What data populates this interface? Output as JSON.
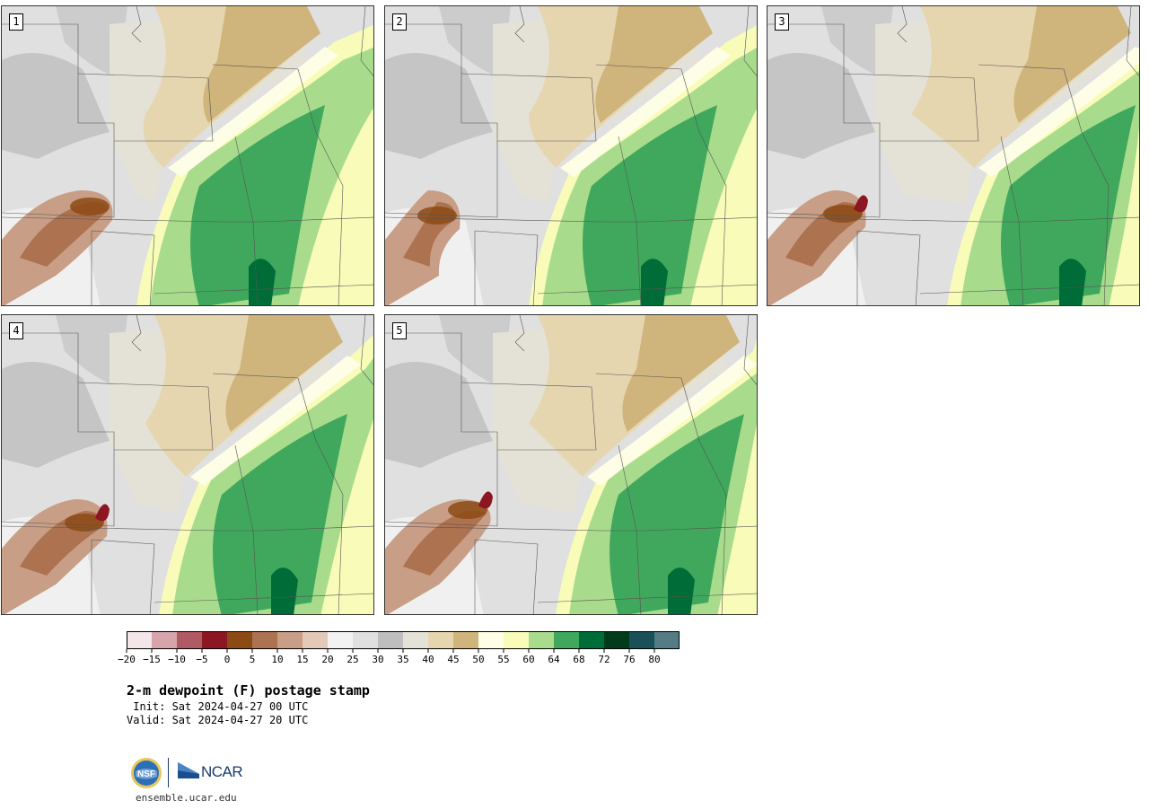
{
  "panels": [
    {
      "label": "1",
      "variant": 0
    },
    {
      "label": "2",
      "variant": 1
    },
    {
      "label": "3",
      "variant": 2
    },
    {
      "label": "4",
      "variant": 3
    },
    {
      "label": "5",
      "variant": 4
    }
  ],
  "colorbar": {
    "colors": [
      "#f2e6e8",
      "#d8a4ac",
      "#b05a64",
      "#8c1622",
      "#8c4a14",
      "#ad7250",
      "#c89e86",
      "#e4c8b8",
      "#f2f2f2",
      "#e0e0e0",
      "#bebebe",
      "#e4e2d6",
      "#e6d6b0",
      "#cfb47c",
      "#fefee6",
      "#f8fcb8",
      "#a8dc8c",
      "#40a85c",
      "#006c38",
      "#003c1c",
      "#1a5058",
      "#547c84"
    ],
    "tick_labels": [
      "−20",
      "−15",
      "−10",
      "−5",
      "0",
      "5",
      "10",
      "15",
      "20",
      "25",
      "30",
      "35",
      "40",
      "45",
      "50",
      "55",
      "60",
      "64",
      "68",
      "72",
      "76",
      "80"
    ]
  },
  "title": "2-m dewpoint (F) postage stamp",
  "init": " Init: Sat 2024-04-27 00 UTC",
  "valid": "Valid: Sat 2024-04-27 20 UTC",
  "logos": {
    "nsf": "NSF",
    "ncar": "NCAR",
    "url": "ensemble.ucar.edu"
  },
  "icons": {
    "nsf": "nsf-logo-icon",
    "ncar": "ncar-logo-icon"
  }
}
